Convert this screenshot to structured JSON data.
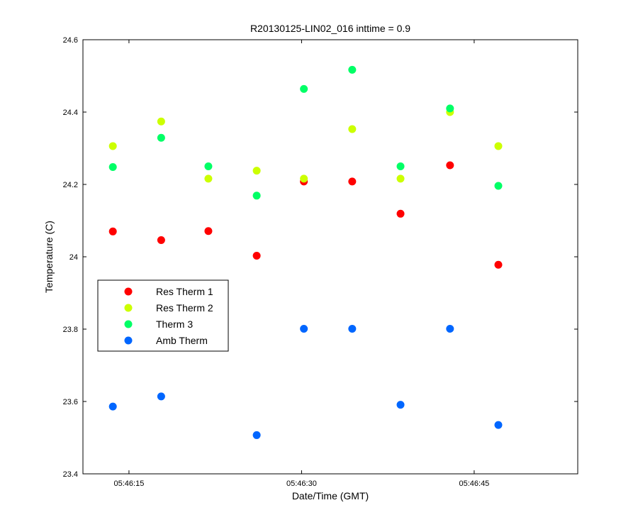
{
  "chart_data": {
    "type": "scatter",
    "title": "R20130125-LIN02_016 inttime = 0.9",
    "xlabel": "Date/Time (GMT)",
    "ylabel": "Temperature (C)",
    "ylim": [
      23.4,
      24.6
    ],
    "yticks": [
      "23.4",
      "23.6",
      "23.8",
      "24",
      "24.2",
      "24.4",
      "24.6"
    ],
    "xlim": [
      "05:46:11",
      "05:46:54"
    ],
    "xticks": [
      "05:46:15",
      "05:46:30",
      "05:46:45"
    ],
    "x": [
      "05:46:13.6",
      "05:46:17.8",
      "05:46:21.9",
      "05:46:26.1",
      "05:46:30.2",
      "05:46:34.4",
      "05:46:38.6",
      "05:46:42.9",
      "05:46:47.1"
    ],
    "legend_position": "middle-left",
    "series": [
      {
        "name": "Res Therm 1",
        "color": "#ff0000",
        "values": [
          24.07,
          24.046,
          24.071,
          24.003,
          24.208,
          24.208,
          24.119,
          24.253,
          23.978
        ]
      },
      {
        "name": "Res Therm 2",
        "color": "#ccff00",
        "values": [
          24.306,
          24.374,
          24.216,
          24.238,
          24.216,
          24.353,
          24.216,
          24.4,
          24.306
        ]
      },
      {
        "name": "Therm 3",
        "color": "#00ff66",
        "values": [
          24.248,
          24.329,
          24.25,
          24.169,
          24.464,
          24.517,
          24.25,
          24.41,
          24.196
        ]
      },
      {
        "name": "Amb Therm",
        "color": "#0066ff",
        "values": [
          23.586,
          23.614,
          null,
          23.507,
          23.801,
          23.801,
          23.591,
          23.801,
          23.535
        ]
      }
    ]
  }
}
